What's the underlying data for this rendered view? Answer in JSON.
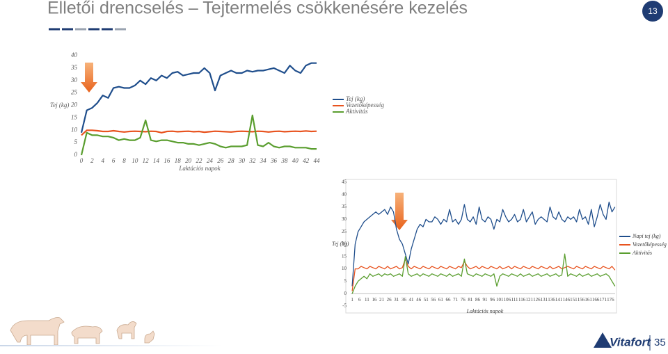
{
  "title": "Elletői drencselés – Tejtermelés csökkenésére kezelés",
  "page_number": "13",
  "logo": {
    "name": "Vitafort",
    "years": "35"
  },
  "chart_data": [
    {
      "type": "line",
      "y_label": "Tej (kg)",
      "x_label": "Laktációs napok",
      "x": [
        0,
        1,
        2,
        3,
        4,
        5,
        6,
        7,
        8,
        9,
        10,
        11,
        12,
        13,
        14,
        15,
        16,
        17,
        18,
        19,
        20,
        21,
        22,
        23,
        24,
        25,
        26,
        27,
        28,
        29,
        30,
        31,
        32,
        33,
        34,
        35,
        36,
        37,
        38,
        39,
        40,
        41,
        42,
        43,
        44
      ],
      "xlim": [
        0,
        44
      ],
      "xticks": [
        0,
        2,
        4,
        6,
        8,
        10,
        12,
        14,
        16,
        18,
        20,
        22,
        24,
        26,
        28,
        30,
        32,
        34,
        36,
        38,
        40,
        42,
        44
      ],
      "ylim": [
        0,
        40
      ],
      "yticks": [
        0,
        5,
        10,
        15,
        20,
        25,
        30,
        35,
        40
      ],
      "series": [
        {
          "name": "Tej (kg)",
          "color": "#1f4e8c",
          "values": [
            9,
            18,
            19,
            21,
            24,
            23,
            27,
            27.5,
            27,
            27,
            28,
            30,
            28.5,
            31,
            30,
            32,
            31,
            33,
            33.5,
            32,
            32.5,
            33,
            33,
            35,
            33,
            26,
            32,
            33,
            34,
            33,
            33,
            34,
            33.5,
            34,
            34,
            34.5,
            35,
            34,
            33,
            36,
            34,
            33,
            36,
            37,
            37
          ]
        },
        {
          "name": "Vezetőképesség",
          "color": "#e8531f",
          "values": [
            8,
            10,
            10,
            9.8,
            9.5,
            9.5,
            9.8,
            9.5,
            9.3,
            9.5,
            9.6,
            9.5,
            9.4,
            9.6,
            9.5,
            9,
            9.5,
            9.6,
            9.4,
            9.5,
            9.6,
            9.4,
            9.5,
            9.2,
            9.4,
            9.6,
            9.5,
            9.4,
            9.3,
            9.5,
            9.6,
            9.5,
            9.4,
            9.6,
            9.5,
            9.3,
            9.5,
            9.6,
            9.4,
            9.5,
            9.6,
            9.5,
            9.7,
            9.5,
            9.6
          ]
        },
        {
          "name": "Aktivitás",
          "color": "#5a9e2f",
          "values": [
            0,
            9,
            8,
            8,
            7.5,
            7.5,
            7,
            6,
            6.5,
            6,
            6,
            7,
            14,
            6,
            5.5,
            6,
            6,
            5.5,
            5,
            5,
            4.5,
            4.5,
            4,
            4.5,
            5,
            4.5,
            3.5,
            3,
            3.5,
            3.5,
            3.5,
            4,
            16,
            4,
            3.5,
            5,
            3.5,
            3,
            3.5,
            3.5,
            3,
            3,
            3,
            2.5,
            2.5
          ]
        }
      ]
    },
    {
      "type": "line",
      "y_label": "Tej (kg)",
      "x_label": "Laktációs napok",
      "x": [
        1,
        3,
        5,
        7,
        9,
        11,
        13,
        15,
        17,
        19,
        21,
        23,
        25,
        27,
        29,
        31,
        33,
        35,
        37,
        39,
        41,
        43,
        45,
        47,
        49,
        51,
        53,
        55,
        57,
        59,
        61,
        63,
        65,
        67,
        69,
        71,
        73,
        75,
        77,
        79,
        81,
        83,
        85,
        87,
        89,
        91,
        93,
        95,
        97,
        99,
        101,
        103,
        105,
        107,
        109,
        111,
        113,
        115,
        117,
        119,
        121,
        123,
        125,
        127,
        129,
        131,
        133,
        135,
        137,
        139,
        141,
        143,
        145,
        147,
        149,
        151,
        153,
        155,
        157,
        159,
        161,
        163,
        165,
        167,
        169,
        171,
        173,
        175,
        177,
        179
      ],
      "xlim": [
        0,
        181
      ],
      "xticks": [
        1,
        6,
        11,
        16,
        21,
        26,
        31,
        36,
        41,
        46,
        51,
        56,
        61,
        66,
        71,
        76,
        81,
        86,
        91,
        96,
        101,
        106,
        111,
        116,
        121,
        126,
        131,
        136,
        141,
        146,
        151,
        156,
        161,
        166,
        171,
        176
      ],
      "ylim": [
        -5,
        45
      ],
      "yticks": [
        -5,
        0,
        5,
        10,
        15,
        20,
        25,
        30,
        35,
        40,
        45
      ],
      "series": [
        {
          "name": "Napi tej (kg)",
          "color": "#1f4e8c",
          "values": [
            3,
            20,
            25,
            27,
            29,
            30,
            31,
            32,
            33,
            32,
            33,
            34,
            32,
            35,
            33,
            26,
            22,
            20,
            16,
            12,
            18,
            22,
            26,
            28,
            27,
            30,
            29,
            29,
            31,
            30,
            28,
            30,
            29,
            34,
            29,
            30,
            28,
            30,
            36,
            30,
            29,
            31,
            28,
            35,
            30,
            29,
            31,
            30,
            26,
            30,
            29,
            34,
            31,
            29,
            30,
            32,
            29,
            30,
            34,
            29,
            31,
            33,
            28,
            30,
            31,
            30,
            29,
            35,
            31,
            30,
            33,
            30,
            29,
            31,
            30,
            31,
            29,
            34,
            30,
            31,
            28,
            34,
            27,
            31,
            36,
            32,
            30,
            37,
            33,
            35
          ]
        },
        {
          "name": "Vezetőképesség",
          "color": "#e8531f",
          "values": [
            1,
            10,
            10,
            11,
            10.5,
            10,
            11,
            10.5,
            10,
            11,
            10.5,
            10,
            11,
            10,
            10.5,
            11,
            10,
            10.5,
            14,
            11,
            10,
            11,
            10.5,
            10,
            11,
            10.5,
            10,
            11,
            10.5,
            10,
            11,
            10.5,
            10,
            11,
            10.5,
            10,
            11,
            10.5,
            13,
            11,
            10,
            10.5,
            11,
            10,
            11,
            10.5,
            10,
            11,
            10.5,
            10,
            11,
            10,
            10.5,
            11,
            10,
            11,
            10.5,
            10,
            11,
            10.5,
            10,
            11,
            10.5,
            10,
            11,
            10.5,
            10,
            11,
            10,
            10.5,
            11,
            10,
            10.5,
            11,
            10.5,
            10,
            11,
            10.5,
            10,
            11,
            10.5,
            10,
            11,
            10.5,
            10,
            11,
            10.5,
            10,
            11,
            9.5
          ]
        },
        {
          "name": "Aktivitás",
          "color": "#5a9e2f",
          "values": [
            0,
            3,
            5,
            6,
            7,
            6,
            8,
            7,
            7.5,
            8,
            7,
            8,
            7.5,
            8,
            7,
            7.5,
            8,
            7,
            15,
            8,
            7,
            7.5,
            8,
            7,
            8,
            7.5,
            7,
            8,
            7.5,
            7,
            8,
            7.5,
            7,
            8,
            7,
            7.5,
            8,
            7,
            14,
            8,
            7.5,
            7,
            8,
            7.5,
            7,
            8,
            7.5,
            7,
            8,
            3,
            7,
            8,
            7.5,
            7,
            8,
            7.5,
            7,
            8,
            7,
            7.5,
            8,
            7,
            7.5,
            8,
            7,
            7.5,
            8,
            7,
            7.5,
            8,
            7,
            7.5,
            16,
            7,
            8,
            7.5,
            7,
            8,
            7,
            7.5,
            8,
            7,
            7.5,
            8,
            7,
            7.5,
            8,
            7,
            5,
            3
          ]
        }
      ]
    }
  ]
}
